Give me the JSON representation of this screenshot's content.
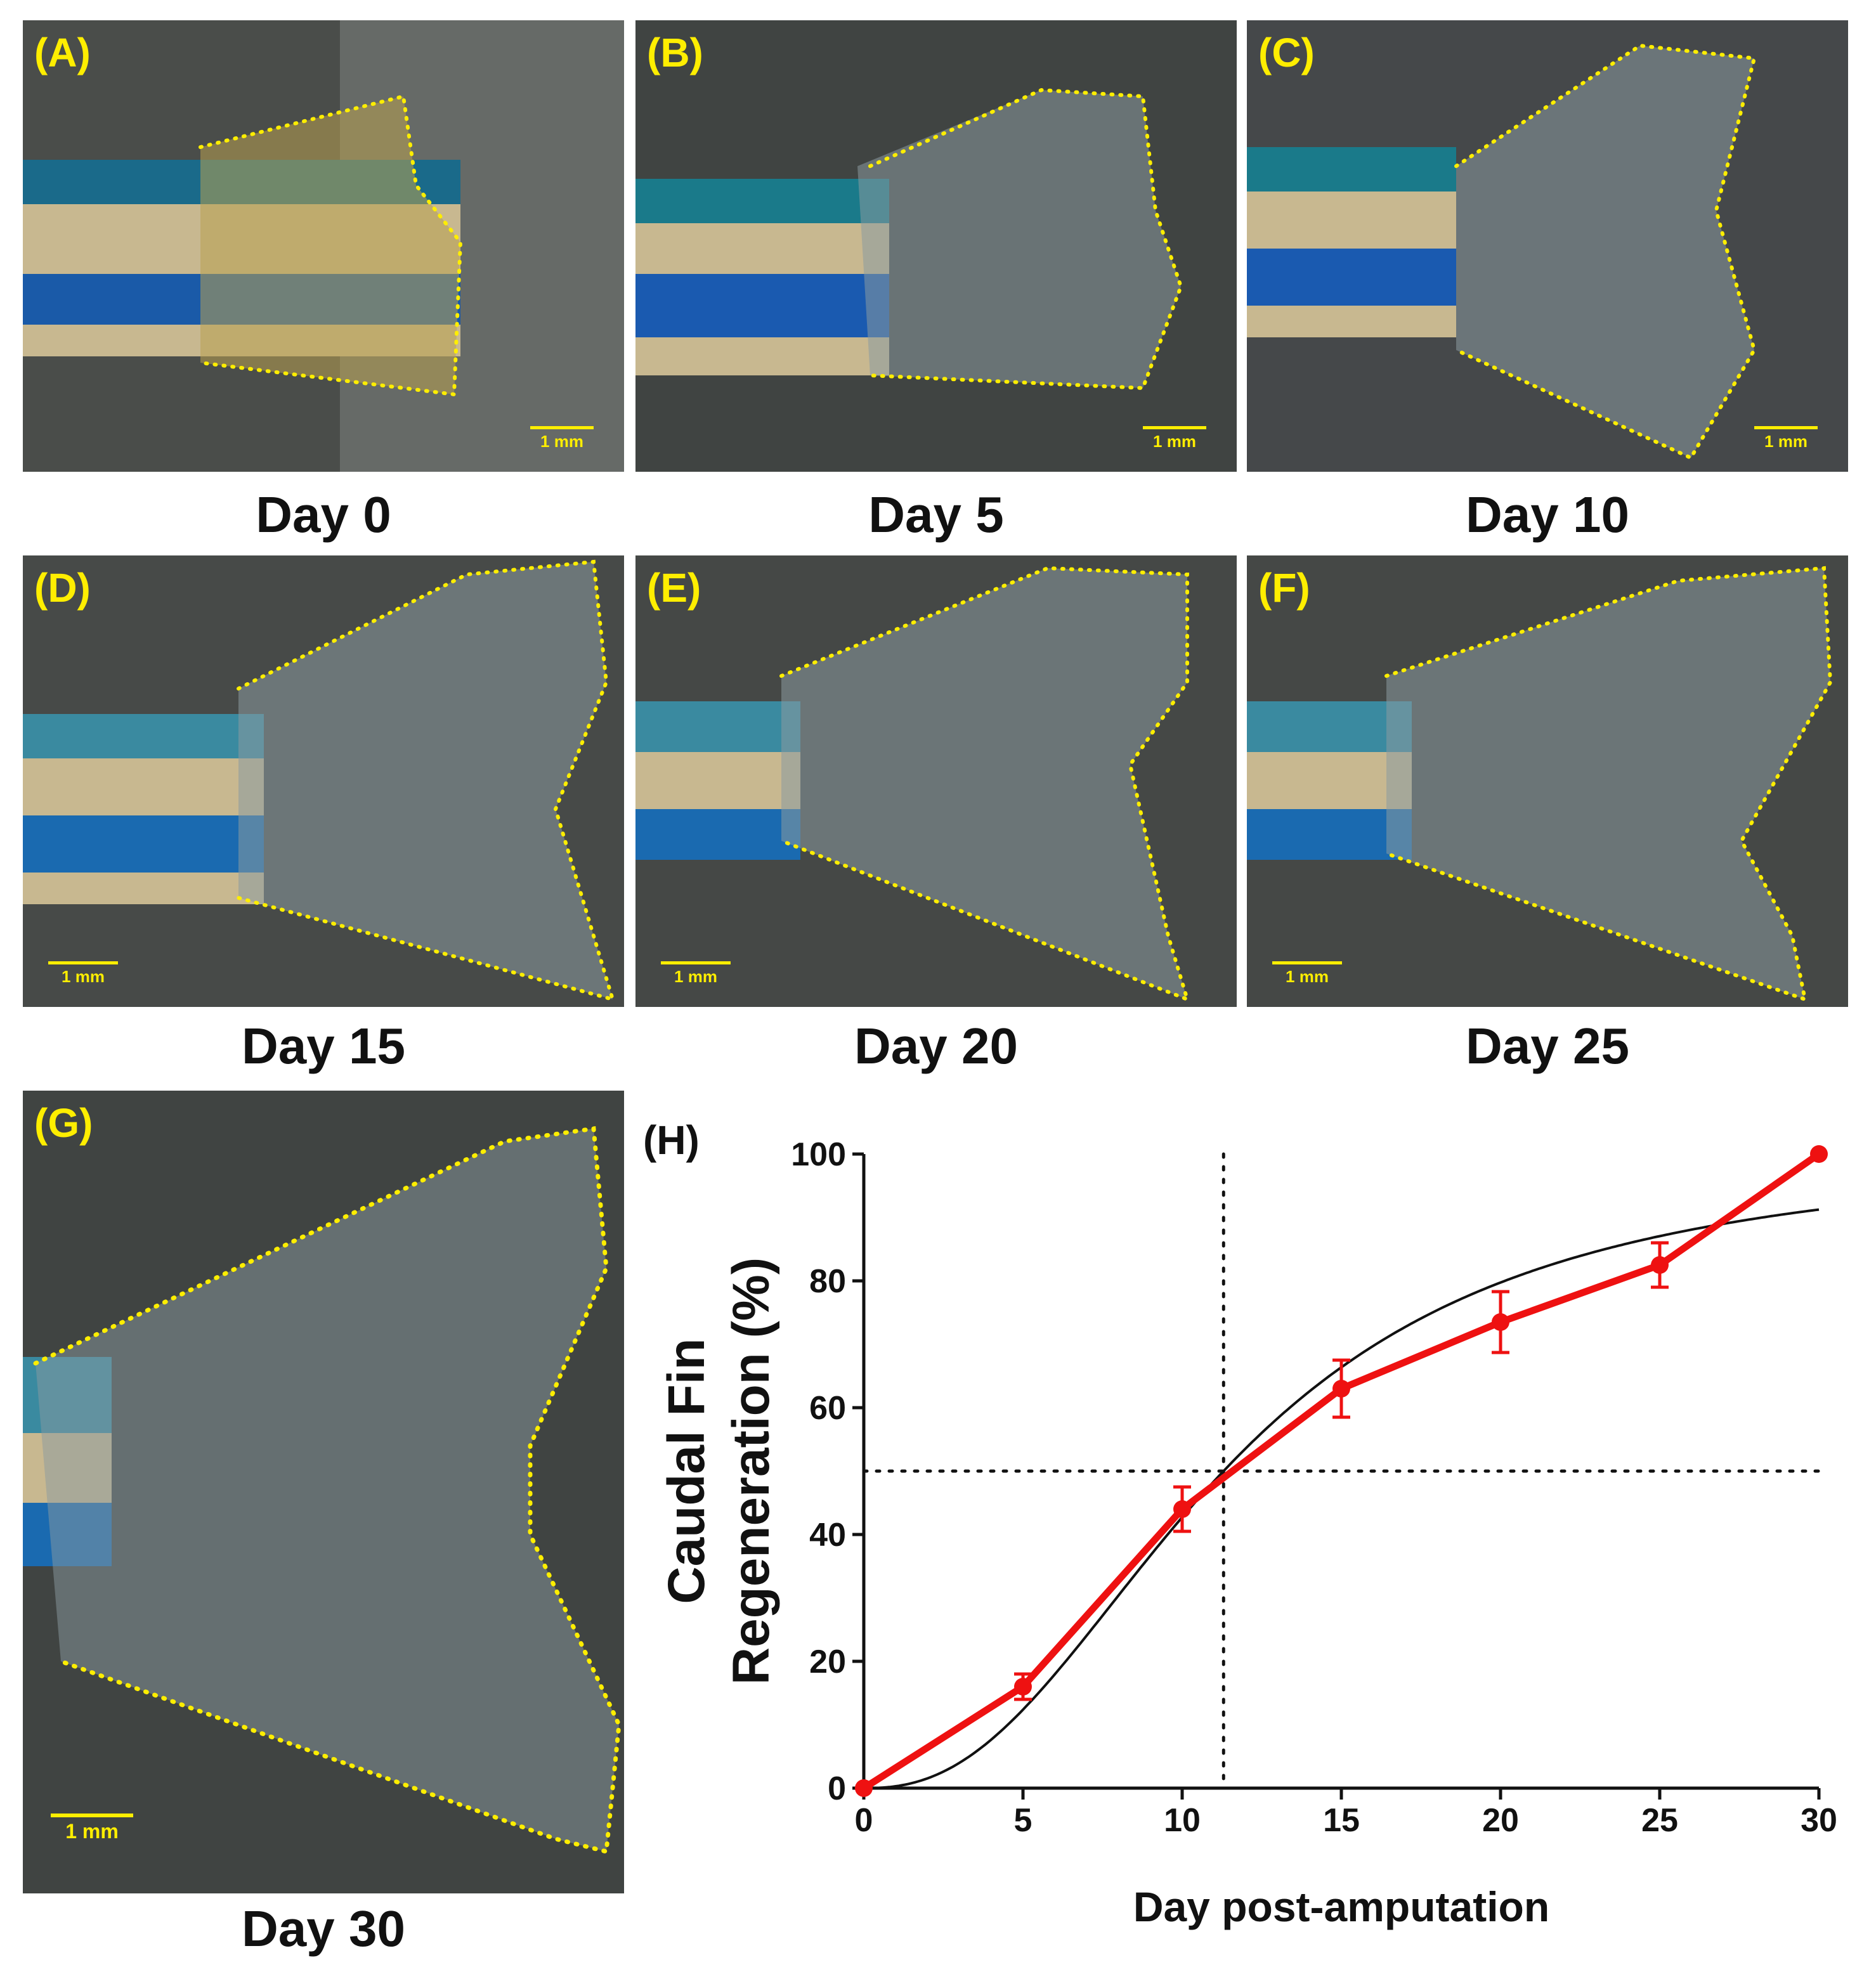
{
  "panels": [
    {
      "label": "(A)",
      "caption": "Day 0",
      "scale": "1 mm"
    },
    {
      "label": "(B)",
      "caption": "Day 5",
      "scale": "1 mm"
    },
    {
      "label": "(C)",
      "caption": "Day 10",
      "scale": "1 mm"
    },
    {
      "label": "(D)",
      "caption": "Day 15",
      "scale": "1 mm"
    },
    {
      "label": "(E)",
      "caption": "Day 20",
      "scale": "1 mm"
    },
    {
      "label": "(F)",
      "caption": "Day 25",
      "scale": "1 mm"
    },
    {
      "label": "(G)",
      "caption": "Day 30",
      "scale": "1 mm"
    }
  ],
  "colors": {
    "outline": "#ffee00",
    "series": "#ee1111",
    "fit": "#111111"
  },
  "chart_data": {
    "panel_label": "(H)",
    "type": "line",
    "xlabel": "Day post-amputation",
    "ylabel_line1": "Caudal Fin",
    "ylabel_line2": "Regeneration (%)",
    "xlim": [
      0,
      30
    ],
    "ylim": [
      0,
      100
    ],
    "xticks": [
      0,
      5,
      10,
      15,
      20,
      25,
      30
    ],
    "yticks": [
      0,
      20,
      40,
      60,
      80,
      100
    ],
    "series": [
      {
        "name": "Regeneration",
        "x": [
          0,
          5,
          10,
          15,
          20,
          25,
          30
        ],
        "y": [
          0,
          16,
          44,
          63,
          73.5,
          82.5,
          100
        ],
        "err": [
          0,
          2,
          3.5,
          4.5,
          4.8,
          3.5,
          0
        ]
      }
    ],
    "fit": {
      "type": "sigmoidal",
      "x50": 11.3,
      "hill": 2.4,
      "top": 100
    },
    "reference_lines": {
      "x": 11.3,
      "y": 50
    }
  }
}
